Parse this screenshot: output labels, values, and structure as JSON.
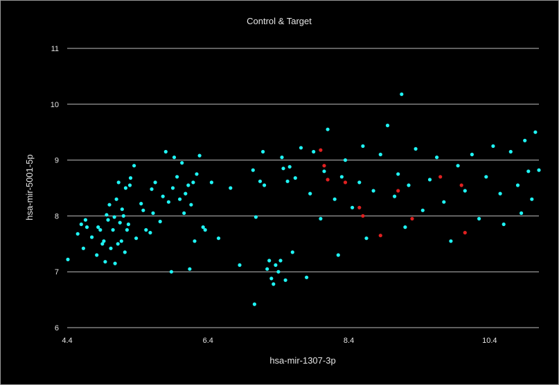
{
  "chart_data": {
    "type": "scatter",
    "title": "Control & Target",
    "xlabel": "hsa-mir-1307-3p",
    "ylabel": "hsa-mir-5001-5p",
    "xlim": [
      4.4,
      11.1
    ],
    "ylim": [
      6,
      11
    ],
    "x_ticks": [
      "4.4",
      "6.4",
      "8.4",
      "10.4"
    ],
    "y_ticks": [
      "6",
      "7",
      "8",
      "9",
      "10",
      "11"
    ],
    "grid": "horizontal",
    "legend": "none",
    "series": [
      {
        "color": "#1ff5f5",
        "values": [
          [
            4.41,
            7.22
          ],
          [
            4.55,
            7.68
          ],
          [
            4.6,
            7.85
          ],
          [
            4.63,
            7.42
          ],
          [
            4.66,
            7.93
          ],
          [
            4.68,
            7.8
          ],
          [
            4.75,
            7.62
          ],
          [
            4.82,
            7.3
          ],
          [
            4.84,
            7.8
          ],
          [
            4.87,
            7.75
          ],
          [
            4.9,
            7.5
          ],
          [
            4.92,
            7.55
          ],
          [
            4.94,
            7.18
          ],
          [
            4.96,
            8.02
          ],
          [
            4.98,
            7.93
          ],
          [
            5.0,
            8.2
          ],
          [
            5.02,
            7.42
          ],
          [
            5.05,
            7.75
          ],
          [
            5.07,
            7.98
          ],
          [
            5.08,
            7.15
          ],
          [
            5.1,
            8.3
          ],
          [
            5.12,
            7.5
          ],
          [
            5.13,
            8.6
          ],
          [
            5.15,
            7.88
          ],
          [
            5.17,
            7.55
          ],
          [
            5.18,
            8.12
          ],
          [
            5.2,
            8.0
          ],
          [
            5.22,
            7.35
          ],
          [
            5.23,
            8.5
          ],
          [
            5.25,
            7.75
          ],
          [
            5.27,
            7.85
          ],
          [
            5.29,
            8.55
          ],
          [
            5.3,
            8.68
          ],
          [
            5.35,
            8.9
          ],
          [
            5.38,
            7.6
          ],
          [
            5.45,
            8.22
          ],
          [
            5.48,
            8.1
          ],
          [
            5.52,
            7.75
          ],
          [
            5.58,
            7.7
          ],
          [
            5.6,
            8.48
          ],
          [
            5.62,
            8.05
          ],
          [
            5.65,
            8.6
          ],
          [
            5.72,
            7.9
          ],
          [
            5.76,
            8.35
          ],
          [
            5.8,
            9.15
          ],
          [
            5.84,
            8.25
          ],
          [
            5.88,
            7.0
          ],
          [
            5.9,
            8.5
          ],
          [
            5.92,
            9.05
          ],
          [
            5.96,
            8.7
          ],
          [
            6.0,
            8.3
          ],
          [
            6.03,
            8.95
          ],
          [
            6.06,
            8.05
          ],
          [
            6.08,
            8.4
          ],
          [
            6.12,
            8.55
          ],
          [
            6.14,
            7.05
          ],
          [
            6.16,
            8.2
          ],
          [
            6.19,
            8.6
          ],
          [
            6.21,
            7.55
          ],
          [
            6.24,
            8.75
          ],
          [
            6.28,
            9.08
          ],
          [
            6.33,
            7.8
          ],
          [
            6.36,
            7.75
          ],
          [
            6.45,
            8.6
          ],
          [
            6.55,
            7.6
          ],
          [
            6.72,
            8.5
          ],
          [
            6.85,
            7.12
          ],
          [
            7.04,
            8.82
          ],
          [
            7.06,
            6.42
          ],
          [
            7.08,
            7.98
          ],
          [
            7.14,
            8.62
          ],
          [
            7.18,
            9.15
          ],
          [
            7.2,
            8.55
          ],
          [
            7.24,
            7.05
          ],
          [
            7.27,
            7.2
          ],
          [
            7.3,
            6.88
          ],
          [
            7.33,
            6.78
          ],
          [
            7.36,
            7.12
          ],
          [
            7.4,
            7.0
          ],
          [
            7.43,
            7.2
          ],
          [
            7.45,
            9.05
          ],
          [
            7.47,
            8.85
          ],
          [
            7.5,
            6.85
          ],
          [
            7.53,
            8.62
          ],
          [
            7.56,
            8.88
          ],
          [
            7.6,
            7.35
          ],
          [
            7.64,
            8.68
          ],
          [
            7.72,
            9.22
          ],
          [
            7.8,
            6.9
          ],
          [
            7.85,
            8.4
          ],
          [
            7.9,
            9.15
          ],
          [
            8.0,
            7.95
          ],
          [
            8.05,
            8.8
          ],
          [
            8.1,
            9.55
          ],
          [
            8.2,
            8.3
          ],
          [
            8.25,
            7.3
          ],
          [
            8.3,
            8.7
          ],
          [
            8.35,
            9.0
          ],
          [
            8.45,
            8.15
          ],
          [
            8.55,
            8.6
          ],
          [
            8.6,
            9.25
          ],
          [
            8.65,
            7.6
          ],
          [
            8.75,
            8.45
          ],
          [
            8.85,
            9.1
          ],
          [
            8.95,
            9.62
          ],
          [
            9.05,
            8.35
          ],
          [
            9.1,
            8.75
          ],
          [
            9.15,
            10.18
          ],
          [
            9.2,
            7.8
          ],
          [
            9.25,
            8.55
          ],
          [
            9.35,
            9.2
          ],
          [
            9.45,
            8.1
          ],
          [
            9.55,
            8.65
          ],
          [
            9.65,
            9.05
          ],
          [
            9.75,
            8.25
          ],
          [
            9.85,
            7.55
          ],
          [
            9.95,
            8.9
          ],
          [
            10.05,
            8.45
          ],
          [
            10.15,
            9.1
          ],
          [
            10.25,
            7.95
          ],
          [
            10.35,
            8.7
          ],
          [
            10.45,
            9.25
          ],
          [
            10.55,
            8.4
          ],
          [
            10.6,
            7.85
          ],
          [
            10.7,
            9.15
          ],
          [
            10.8,
            8.55
          ],
          [
            10.85,
            8.05
          ],
          [
            10.9,
            9.35
          ],
          [
            10.95,
            8.8
          ],
          [
            11.0,
            8.3
          ],
          [
            11.05,
            9.5
          ],
          [
            11.1,
            8.82
          ]
        ]
      },
      {
        "color": "#e02020",
        "values": [
          [
            8.0,
            9.18
          ],
          [
            8.05,
            8.9
          ],
          [
            8.1,
            8.65
          ],
          [
            8.35,
            8.6
          ],
          [
            8.55,
            8.15
          ],
          [
            8.6,
            8.0
          ],
          [
            8.85,
            7.65
          ],
          [
            9.1,
            8.45
          ],
          [
            9.3,
            7.95
          ],
          [
            9.7,
            8.7
          ],
          [
            10.0,
            8.55
          ],
          [
            10.05,
            7.7
          ]
        ]
      }
    ]
  }
}
